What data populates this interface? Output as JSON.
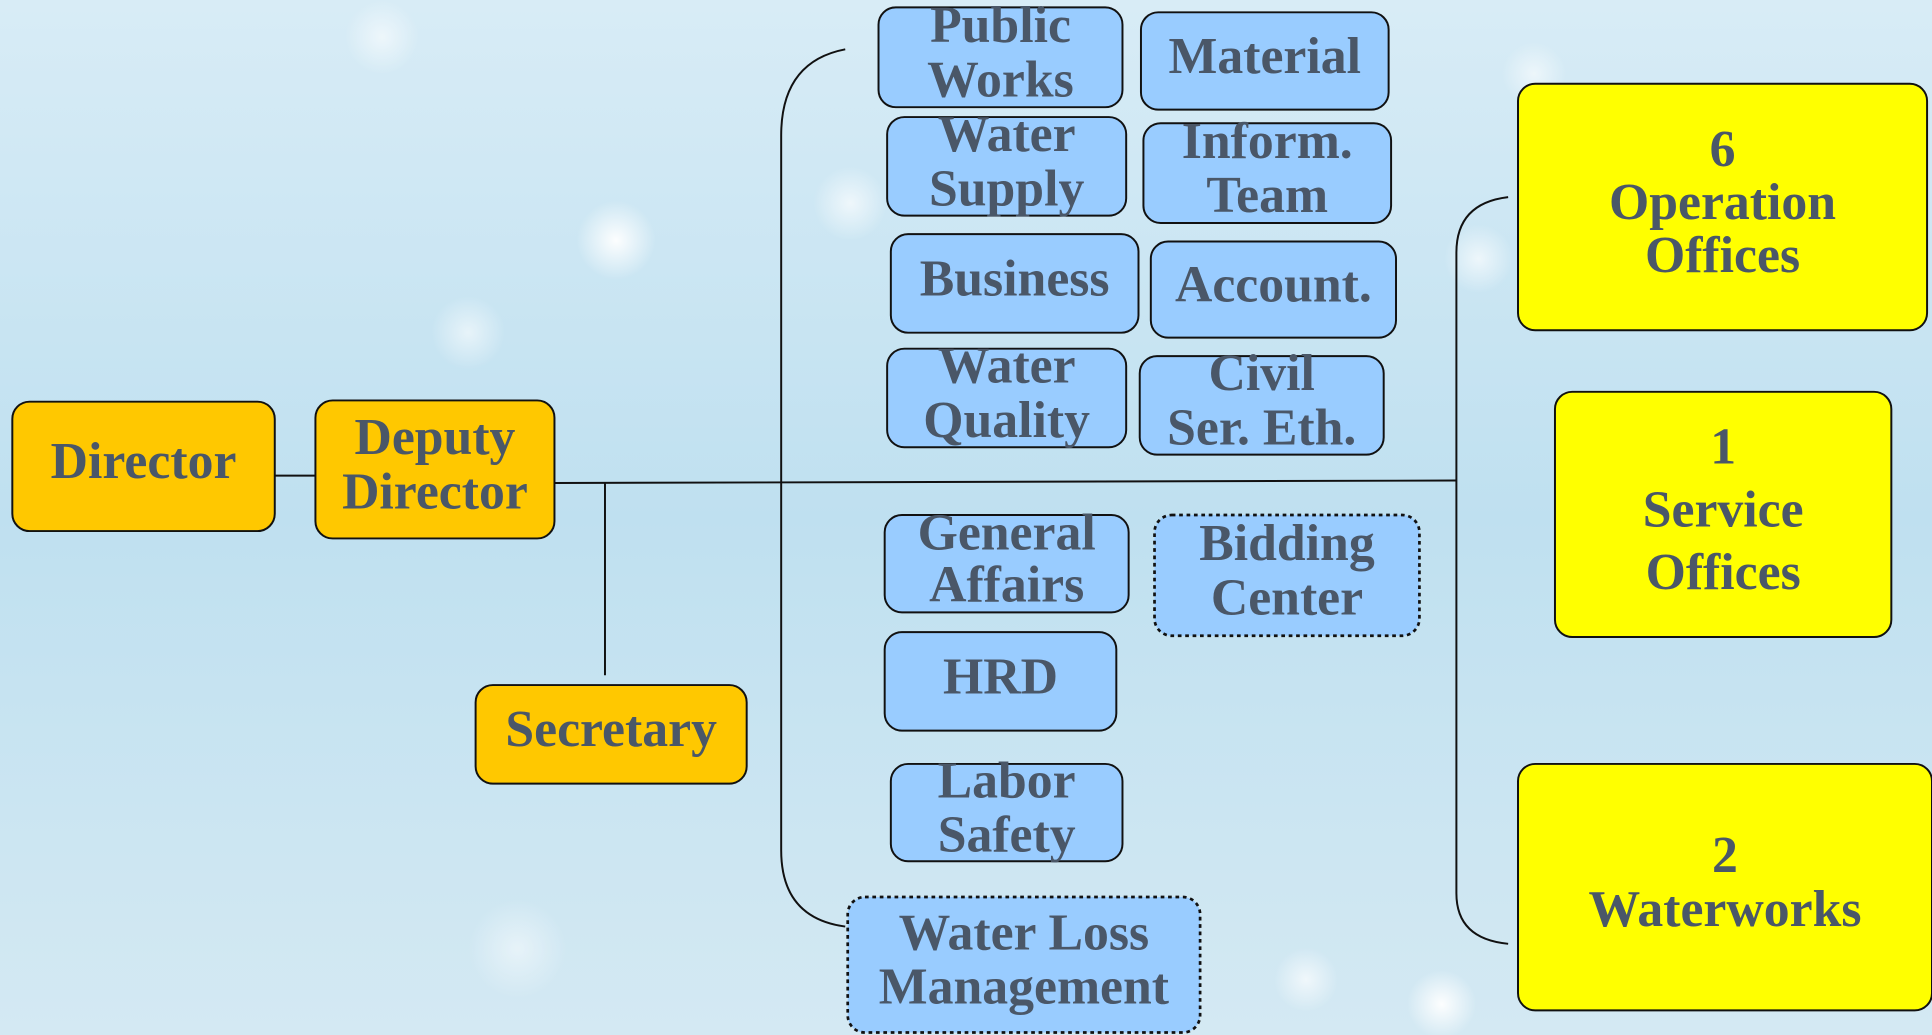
{
  "nodes": [
    {
      "lines": [
        "Director"
      ]
    },
    {
      "lines": [
        "Deputy",
        "Director"
      ]
    },
    {
      "lines": [
        "Secretary"
      ]
    },
    {
      "lines": [
        "Public",
        "Works"
      ]
    },
    {
      "lines": [
        "Material"
      ]
    },
    {
      "lines": [
        "Water",
        "Supply"
      ]
    },
    {
      "lines": [
        "Inform.",
        "Team"
      ]
    },
    {
      "lines": [
        "Business"
      ]
    },
    {
      "lines": [
        "Account."
      ]
    },
    {
      "lines": [
        "Water",
        "Quality"
      ]
    },
    {
      "lines": [
        "Civil",
        "Ser. Eth."
      ]
    },
    {
      "lines": [
        "General",
        "Affairs"
      ]
    },
    {
      "lines": [
        "Bidding",
        "Center"
      ]
    },
    {
      "lines": [
        "HRD"
      ]
    },
    {
      "lines": [
        "Labor",
        "Safety"
      ]
    },
    {
      "lines": [
        "Water Loss",
        "Management"
      ]
    },
    {
      "lines": [
        "6",
        "Operation",
        "Offices"
      ]
    },
    {
      "lines": [
        "1",
        "Service",
        "Offices"
      ]
    },
    {
      "lines": [
        "2",
        "Waterworks"
      ]
    }
  ]
}
